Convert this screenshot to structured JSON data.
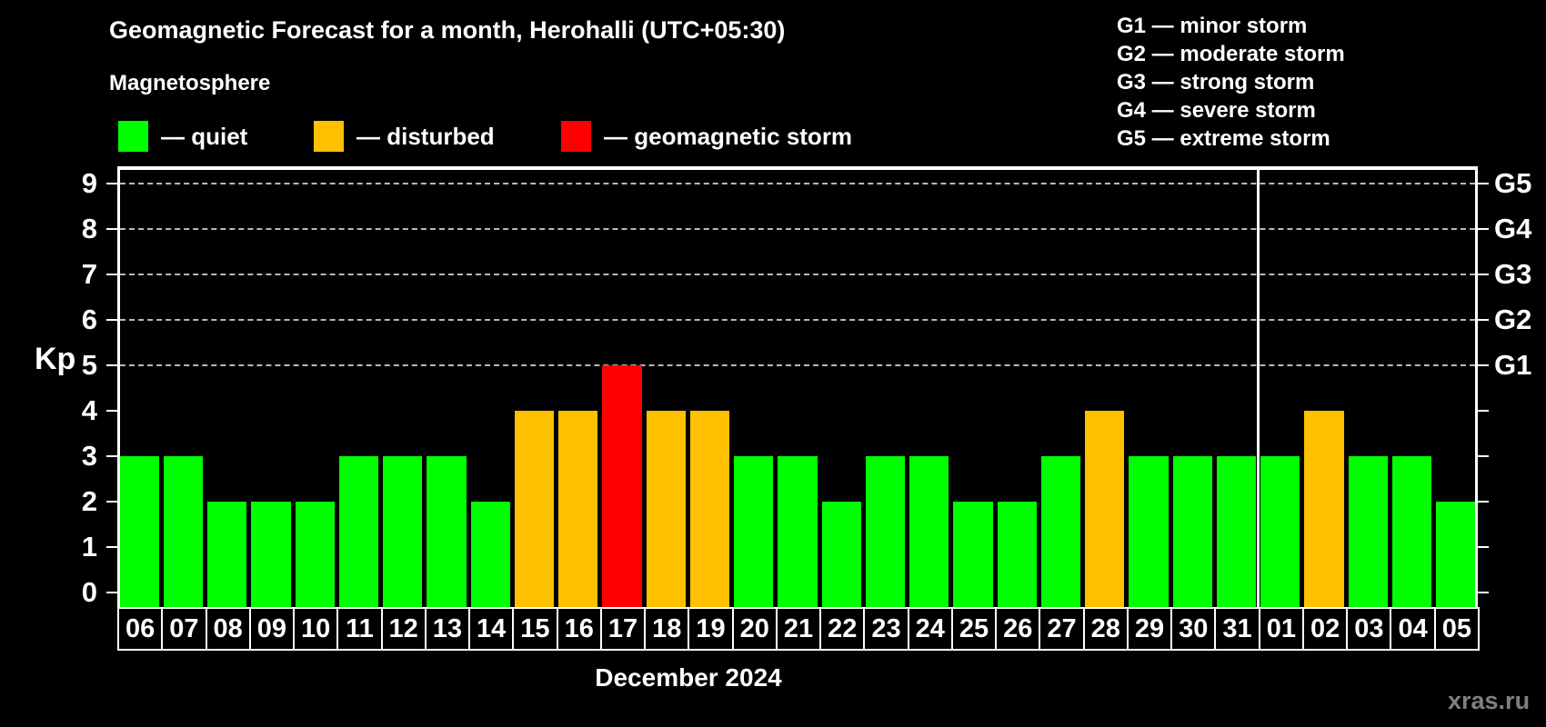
{
  "title": "Geomagnetic Forecast for a month, Herohalli (UTC+05:30)",
  "subtitle": "Magnetosphere",
  "legend": {
    "items": [
      {
        "label": "— quiet",
        "status": "quiet",
        "color": "#00FF00"
      },
      {
        "label": "— disturbed",
        "status": "disturbed",
        "color": "#FFC000"
      },
      {
        "label": "— geomagnetic storm",
        "status": "storm",
        "color": "#FF0000"
      }
    ]
  },
  "g_legend": {
    "items": [
      "G1 — minor storm",
      "G2 — moderate storm",
      "G3 — strong storm",
      "G4 — severe storm",
      "G5 — extreme storm"
    ]
  },
  "axes": {
    "y_label": "Kp",
    "y_ticks": [
      "0",
      "1",
      "2",
      "3",
      "4",
      "5",
      "6",
      "7",
      "8",
      "9"
    ]
  },
  "month_label": "December 2024",
  "watermark": "xras.ru",
  "colors": {
    "background": "#000000",
    "axis": "#FFFFFF",
    "grid": "#B8B8B8",
    "quiet": "#00FF00",
    "disturbed": "#FFC000",
    "storm": "#FF0000",
    "watermark_text": "#808080"
  },
  "chart_data": {
    "type": "bar",
    "title": "Geomagnetic Forecast for a month, Herohalli (UTC+05:30)",
    "xlabel": "December 2024",
    "ylabel": "Kp",
    "ylim": [
      0,
      9.4
    ],
    "grid": "dashed horizontal at Kp 5-9 only",
    "legend_position": "top-left",
    "categories": [
      "06",
      "07",
      "08",
      "09",
      "10",
      "11",
      "12",
      "13",
      "14",
      "15",
      "16",
      "17",
      "18",
      "19",
      "20",
      "21",
      "22",
      "23",
      "24",
      "25",
      "26",
      "27",
      "28",
      "29",
      "30",
      "31",
      "01",
      "02",
      "03",
      "04",
      "05"
    ],
    "values": [
      3,
      3,
      2,
      2,
      2,
      3,
      3,
      3,
      2,
      4,
      4,
      5,
      4,
      4,
      3,
      3,
      2,
      3,
      3,
      2,
      2,
      3,
      4,
      3,
      3,
      3,
      3,
      4,
      3,
      3,
      2
    ],
    "statuses": [
      "quiet",
      "quiet",
      "quiet",
      "quiet",
      "quiet",
      "quiet",
      "quiet",
      "quiet",
      "quiet",
      "disturbed",
      "disturbed",
      "storm",
      "disturbed",
      "disturbed",
      "quiet",
      "quiet",
      "quiet",
      "quiet",
      "quiet",
      "quiet",
      "quiet",
      "quiet",
      "disturbed",
      "quiet",
      "quiet",
      "quiet",
      "quiet",
      "disturbed",
      "quiet",
      "quiet",
      "quiet"
    ],
    "gridlines_at": [
      5,
      6,
      7,
      8,
      9
    ],
    "right_axis_labels": {
      "5": "G1",
      "6": "G2",
      "7": "G3",
      "8": "G4",
      "9": "G5"
    },
    "separator_after_index": 25
  }
}
